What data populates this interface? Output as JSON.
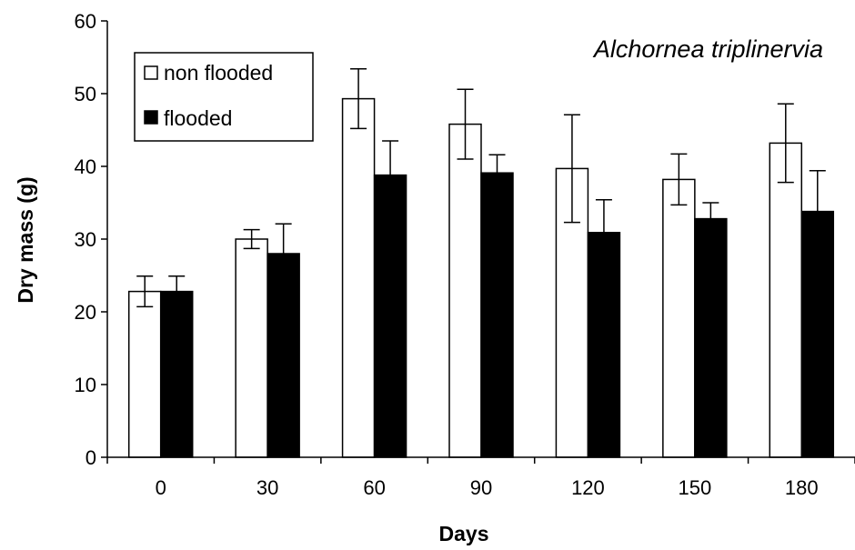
{
  "chart_data": {
    "type": "bar",
    "title": "Alchornea triplinervia",
    "xlabel": "Days",
    "ylabel": "Dry mass (g)",
    "categories": [
      "0",
      "30",
      "60",
      "90",
      "120",
      "150",
      "180"
    ],
    "ylim": [
      0,
      60
    ],
    "yticks": [
      "0",
      "10",
      "20",
      "30",
      "40",
      "50",
      "60"
    ],
    "legend_position": "top-left",
    "series": [
      {
        "name": "non flooded",
        "fill": "#ffffff",
        "values": [
          22.8,
          30.0,
          49.3,
          45.8,
          39.7,
          38.2,
          43.2
        ],
        "error": [
          2.1,
          1.3,
          4.1,
          4.8,
          7.4,
          3.5,
          5.4
        ]
      },
      {
        "name": "flooded",
        "fill": "#000000",
        "values": [
          22.8,
          28.0,
          38.8,
          39.1,
          30.9,
          32.8,
          33.8
        ],
        "error": [
          2.1,
          4.1,
          4.7,
          2.5,
          4.5,
          2.2,
          5.6
        ]
      }
    ],
    "grid": false
  }
}
